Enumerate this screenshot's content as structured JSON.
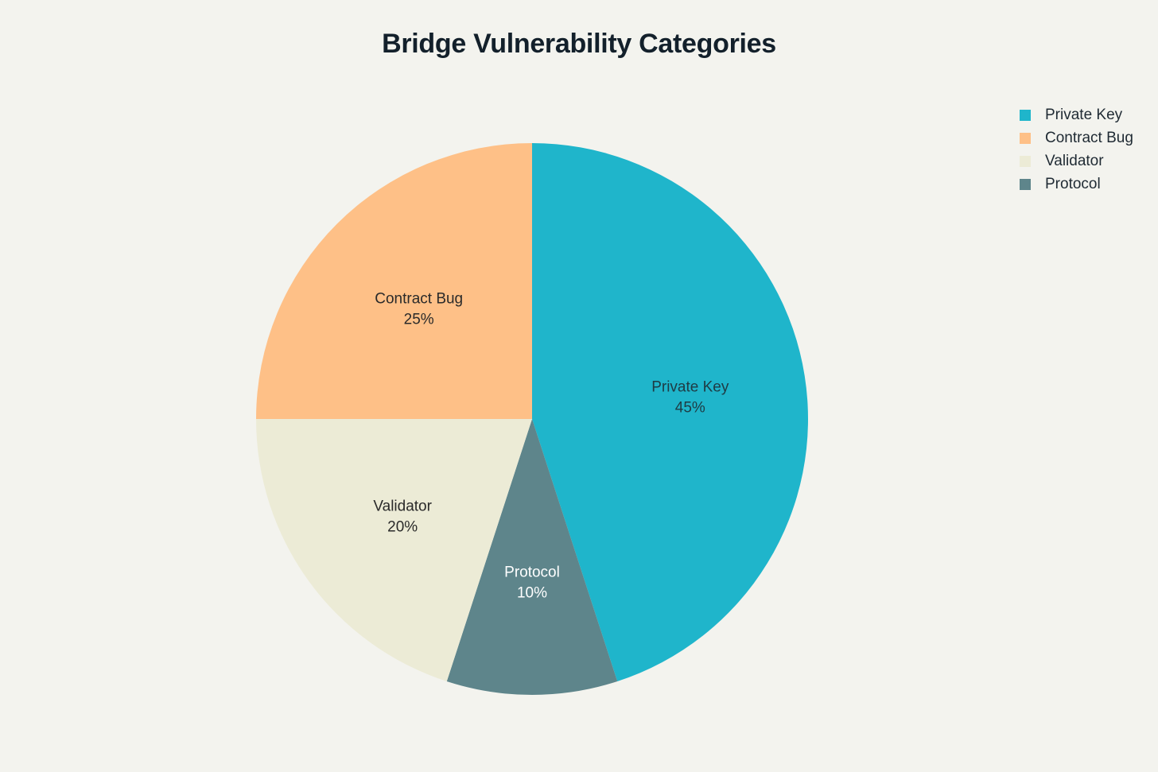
{
  "chart_data": {
    "type": "pie",
    "title": "Bridge Vulnerability Categories",
    "start_angle_deg": 90,
    "direction": "clockwise",
    "legend_position": "top-right",
    "slices": [
      {
        "label": "Private Key",
        "value": 45,
        "display": "45%",
        "color": "#1fb5cb",
        "text_color": "#1f3b44"
      },
      {
        "label": "Protocol",
        "value": 10,
        "display": "10%",
        "color": "#5e858b",
        "text_color": "#ffffff"
      },
      {
        "label": "Validator",
        "value": 20,
        "display": "20%",
        "color": "#ecebd6",
        "text_color": "#2a2a2a"
      },
      {
        "label": "Contract Bug",
        "value": 25,
        "display": "25%",
        "color": "#fec087",
        "text_color": "#2a2a2a"
      }
    ],
    "legend": [
      {
        "label": "Private Key",
        "color": "#1fb5cb"
      },
      {
        "label": "Contract Bug",
        "color": "#fec087"
      },
      {
        "label": "Validator",
        "color": "#ecebd6"
      },
      {
        "label": "Protocol",
        "color": "#5e858b"
      }
    ]
  }
}
